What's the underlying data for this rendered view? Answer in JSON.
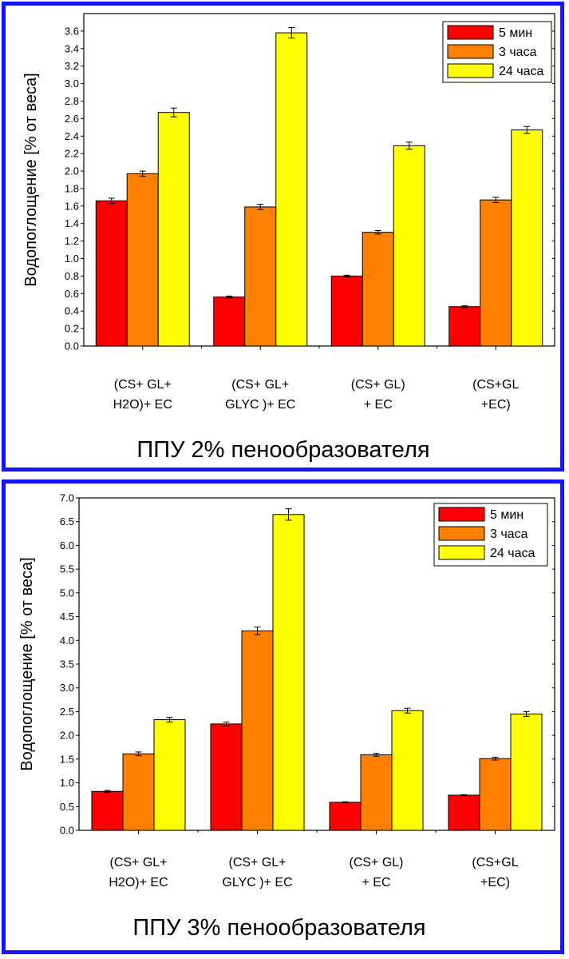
{
  "colors": {
    "frame": "#1414ff",
    "series": [
      "#ff0000",
      "#ff8000",
      "#ffff00"
    ]
  },
  "chart_data": [
    {
      "type": "bar",
      "title": "ППУ  2% пенообразователя",
      "ylabel": "Водопоглощение [% от веса]",
      "xlabel": "",
      "ylim": [
        0,
        3.8
      ],
      "yticks": [
        "0.0",
        "0.2",
        "0.4",
        "0.6",
        "0.8",
        "1.0",
        "1.2",
        "1.4",
        "1.6",
        "1.8",
        "2.0",
        "2.2",
        "2.4",
        "2.6",
        "2.8",
        "3.0",
        "3.2",
        "3.4",
        "3.6"
      ],
      "categories": [
        [
          "(CS+ GL+",
          "H2O)+ EC"
        ],
        [
          "(CS+ GL+",
          "GLYC )+ EC"
        ],
        [
          "(CS+ GL)",
          "+ EC"
        ],
        [
          "(CS+GL",
          "+EC)"
        ]
      ],
      "series": [
        {
          "name": "5 мин",
          "values": [
            1.66,
            0.56,
            0.8,
            0.45
          ],
          "errors": [
            0.03,
            0.01,
            0.01,
            0.01
          ]
        },
        {
          "name": "3 часа",
          "values": [
            1.97,
            1.59,
            1.3,
            1.67
          ],
          "errors": [
            0.03,
            0.03,
            0.02,
            0.03
          ]
        },
        {
          "name": "24 часа",
          "values": [
            2.67,
            3.58,
            2.29,
            2.47
          ],
          "errors": [
            0.05,
            0.06,
            0.04,
            0.04
          ]
        }
      ],
      "legend": "top-right"
    },
    {
      "type": "bar",
      "title": "ППУ  3% пенообразователя",
      "ylabel": "Водопоглощение [% от веса]",
      "xlabel": "",
      "ylim": [
        0,
        7.0
      ],
      "yticks": [
        "0.0",
        "0.5",
        "1.0",
        "1.5",
        "2.0",
        "2.5",
        "3.0",
        "3.5",
        "4.0",
        "4.5",
        "5.0",
        "5.5",
        "6.0",
        "6.5",
        "7.0"
      ],
      "categories": [
        [
          "(CS+ GL+",
          "H2O)+ EC"
        ],
        [
          "(CS+ GL+",
          "GLYC )+ EC"
        ],
        [
          "(CS+ GL)",
          "+ EC"
        ],
        [
          "(CS+GL",
          "+EC)"
        ]
      ],
      "series": [
        {
          "name": "5 мин",
          "values": [
            0.82,
            2.24,
            0.59,
            0.74
          ],
          "errors": [
            0.02,
            0.04,
            0.01,
            0.01
          ]
        },
        {
          "name": "3 часа",
          "values": [
            1.61,
            4.2,
            1.59,
            1.51
          ],
          "errors": [
            0.04,
            0.08,
            0.03,
            0.03
          ]
        },
        {
          "name": "24 часа",
          "values": [
            2.33,
            6.65,
            2.52,
            2.45
          ],
          "errors": [
            0.05,
            0.12,
            0.05,
            0.05
          ]
        }
      ],
      "legend": "top-right"
    }
  ]
}
